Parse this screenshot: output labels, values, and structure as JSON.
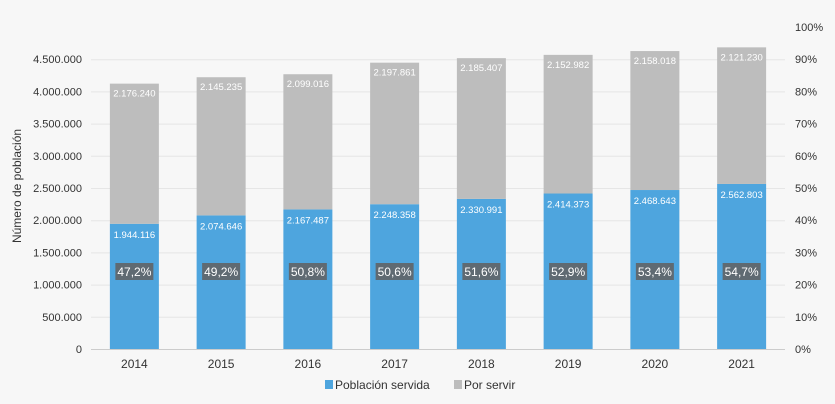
{
  "chart_data": {
    "type": "bar",
    "stacked": true,
    "categories": [
      "2014",
      "2015",
      "2016",
      "2017",
      "2018",
      "2019",
      "2020",
      "2021"
    ],
    "series": [
      {
        "name": "Población servida",
        "values": [
          1944116,
          2074646,
          2167487,
          2248358,
          2330991,
          2414373,
          2468643,
          2562803
        ],
        "value_labels": [
          "1.944.116",
          "2.074.646",
          "2.167.487",
          "2.248.358",
          "2.330.991",
          "2.414.373",
          "2.468.643",
          "2.562.803"
        ],
        "color": "#4ea5de"
      },
      {
        "name": "Por servir",
        "values": [
          2176240,
          2145235,
          2099016,
          2197861,
          2185407,
          2152982,
          2158018,
          2121230
        ],
        "value_labels": [
          "2.176.240",
          "2.145.235",
          "2.099.016",
          "2.197.861",
          "2.185.407",
          "2.152.982",
          "2.158.018",
          "2.121.230"
        ],
        "color": "#bdbdbd"
      }
    ],
    "percent_labels": [
      "47,2%",
      "49,2%",
      "50,8%",
      "50,6%",
      "51,6%",
      "52,9%",
      "53,4%",
      "54,7%"
    ],
    "ylabel": "Número de población",
    "ylim": [
      0,
      5000000
    ],
    "y_ticks": [
      "0",
      "500.000",
      "1.000.000",
      "1.500.000",
      "2.000.000",
      "2.500.000",
      "3.000.000",
      "3.500.000",
      "4.000.000",
      "4.500.000"
    ],
    "y2lim": [
      0,
      100
    ],
    "y2_ticks": [
      "0%",
      "10%",
      "20%",
      "30%",
      "40%",
      "50%",
      "60%",
      "70%",
      "80%",
      "90%",
      "100%"
    ],
    "grid": true,
    "legend": "bottom"
  }
}
